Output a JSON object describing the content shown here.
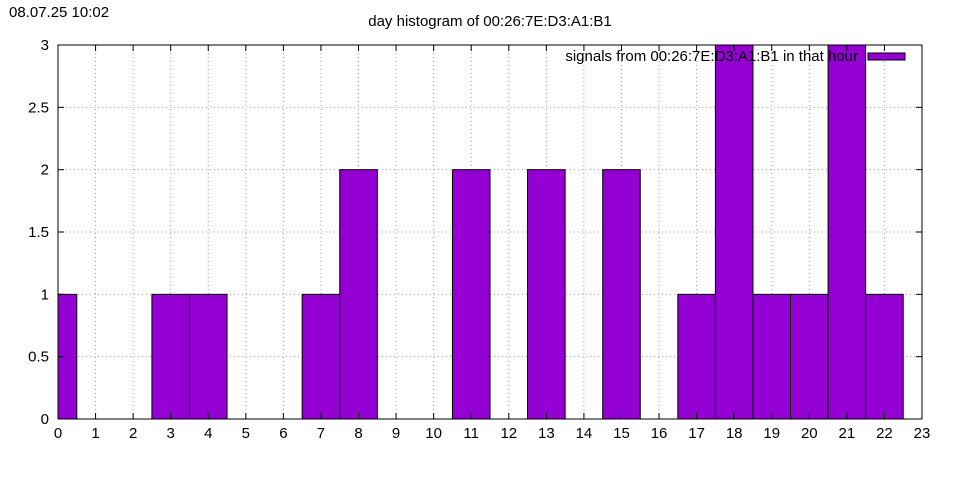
{
  "timestamp": "08.07.25 10:02",
  "colors": {
    "bar": "#9400d3",
    "grid": "#a0a0a0",
    "axis": "#000000"
  },
  "chart_data": {
    "type": "bar",
    "title": "day histogram of 00:26:7E:D3:A1:B1",
    "legend": {
      "label": "signals from 00:26:7E:D3:A1:B1 in that hour",
      "position": "top-right"
    },
    "xlabel": "",
    "ylabel": "",
    "xlim": [
      0,
      23
    ],
    "ylim": [
      0,
      3
    ],
    "xticks": [
      0,
      1,
      2,
      3,
      4,
      5,
      6,
      7,
      8,
      9,
      10,
      11,
      12,
      13,
      14,
      15,
      16,
      17,
      18,
      19,
      20,
      21,
      22,
      23
    ],
    "yticks": [
      "0",
      "0.5",
      "1",
      "1.5",
      "2",
      "2.5",
      "3"
    ],
    "grid": true,
    "bar_width_hours": 1,
    "categories": [
      0,
      1,
      2,
      3,
      4,
      5,
      6,
      7,
      8,
      9,
      10,
      11,
      12,
      13,
      14,
      15,
      16,
      17,
      18,
      19,
      20,
      21,
      22
    ],
    "values": [
      1,
      0,
      0,
      1,
      1,
      0,
      0,
      1,
      2,
      0,
      0,
      2,
      0,
      2,
      0,
      2,
      0,
      1,
      3,
      1,
      1,
      3,
      1
    ]
  }
}
